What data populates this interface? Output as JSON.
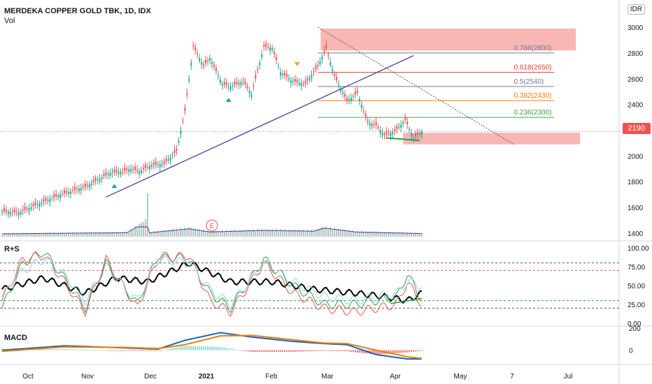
{
  "header": {
    "title": "MERDEKA COPPER GOLD TBK, 1D, IDX",
    "volume_label": "Vol",
    "currency": "IDR",
    "last_price": "2190"
  },
  "panes": {
    "rs_label": "R+S",
    "macd_label": "MACD",
    "earnings_marker": "E"
  },
  "colors": {
    "up": "#26a69a",
    "down": "#ef5350",
    "trendline": "#4a3fa0",
    "zone": "#f7a9a8"
  },
  "chart_data": {
    "type": "candlestick",
    "x_labels": [
      "Oct",
      "Nov",
      "Dec",
      "2021",
      "Feb",
      "Mar",
      "Apr",
      "May",
      "7",
      "Jul"
    ],
    "price_axis": {
      "ticks": [
        1400,
        1600,
        1800,
        2000,
        2200,
        2400,
        2600,
        2800,
        3000
      ],
      "range": [
        1340,
        3060
      ]
    },
    "rs_axis": {
      "ticks": [
        "100.00",
        "75.00",
        "50.00",
        "25.00",
        "0.00"
      ],
      "range": [
        0,
        100
      ],
      "levels": [
        80,
        70,
        30,
        20
      ]
    },
    "macd_axis": {
      "ticks": [
        "200",
        "0"
      ],
      "range": [
        -130,
        220
      ]
    },
    "fib_levels": [
      {
        "label": "0.786(2800)",
        "value": 2800,
        "color": "#787b86"
      },
      {
        "label": "0.618(2650)",
        "value": 2650,
        "color": "#e53935"
      },
      {
        "label": "0.5(2540)",
        "value": 2540,
        "color": "#787b86"
      },
      {
        "label": "0.382(2430)",
        "value": 2430,
        "color": "#f57c00"
      },
      {
        "label": "0.236(2300)",
        "value": 2300,
        "color": "#43a047"
      }
    ],
    "supply_zone": [
      2820,
      2990
    ],
    "demand_zone": [
      2090,
      2180
    ],
    "trendline": {
      "start": 1680,
      "end": 2780
    },
    "descending_line": {
      "start": 3000,
      "end": 2090
    },
    "current_line": 2190,
    "price_waypoints": [
      [
        0,
        1570
      ],
      [
        8,
        1560
      ],
      [
        15,
        1610
      ],
      [
        28,
        1700
      ],
      [
        40,
        1760
      ],
      [
        52,
        1870
      ],
      [
        58,
        1880
      ],
      [
        62,
        1900
      ],
      [
        66,
        1880
      ],
      [
        72,
        1930
      ],
      [
        78,
        1940
      ],
      [
        84,
        2040
      ],
      [
        88,
        2350
      ],
      [
        92,
        2850
      ],
      [
        97,
        2700
      ],
      [
        100,
        2760
      ],
      [
        106,
        2560
      ],
      [
        110,
        2540
      ],
      [
        116,
        2580
      ],
      [
        120,
        2480
      ],
      [
        126,
        2850
      ],
      [
        130,
        2840
      ],
      [
        134,
        2650
      ],
      [
        140,
        2580
      ],
      [
        146,
        2560
      ],
      [
        152,
        2700
      ],
      [
        156,
        2840
      ],
      [
        160,
        2620
      ],
      [
        166,
        2430
      ],
      [
        171,
        2490
      ],
      [
        176,
        2260
      ],
      [
        180,
        2240
      ],
      [
        184,
        2160
      ],
      [
        189,
        2190
      ],
      [
        194,
        2280
      ],
      [
        198,
        2140
      ],
      [
        202,
        2190
      ]
    ],
    "volume_waypoints": [
      [
        0,
        0.18
      ],
      [
        30,
        0.22
      ],
      [
        60,
        0.25
      ],
      [
        70,
        1.0
      ],
      [
        71,
        0.25
      ],
      [
        90,
        0.5
      ],
      [
        100,
        0.3
      ],
      [
        126,
        0.4
      ],
      [
        150,
        0.35
      ],
      [
        155,
        0.55
      ],
      [
        170,
        0.3
      ],
      [
        202,
        0.2
      ]
    ],
    "rs_series": [
      {
        "color": "#000000",
        "waypoints": [
          [
            0,
            45
          ],
          [
            20,
            60
          ],
          [
            40,
            40
          ],
          [
            55,
            60
          ],
          [
            70,
            55
          ],
          [
            90,
            80
          ],
          [
            110,
            55
          ],
          [
            130,
            55
          ],
          [
            150,
            45
          ],
          [
            170,
            40
          ],
          [
            185,
            35
          ],
          [
            195,
            30
          ],
          [
            202,
            40
          ]
        ]
      },
      {
        "color": "#2e9e46",
        "waypoints": [
          [
            0,
            20
          ],
          [
            10,
            80
          ],
          [
            20,
            95
          ],
          [
            30,
            60
          ],
          [
            40,
            20
          ],
          [
            50,
            80
          ],
          [
            65,
            25
          ],
          [
            75,
            90
          ],
          [
            90,
            85
          ],
          [
            100,
            40
          ],
          [
            110,
            20
          ],
          [
            126,
            85
          ],
          [
            140,
            50
          ],
          [
            155,
            25
          ],
          [
            170,
            25
          ],
          [
            180,
            30
          ],
          [
            190,
            35
          ],
          [
            195,
            65
          ],
          [
            202,
            32
          ]
        ]
      },
      {
        "color": "#ef5350",
        "waypoints": [
          [
            0,
            30
          ],
          [
            10,
            85
          ],
          [
            20,
            90
          ],
          [
            30,
            55
          ],
          [
            40,
            15
          ],
          [
            50,
            85
          ],
          [
            65,
            20
          ],
          [
            75,
            85
          ],
          [
            90,
            90
          ],
          [
            100,
            30
          ],
          [
            110,
            15
          ],
          [
            126,
            80
          ],
          [
            140,
            40
          ],
          [
            155,
            20
          ],
          [
            170,
            15
          ],
          [
            180,
            20
          ],
          [
            190,
            25
          ],
          [
            195,
            55
          ],
          [
            202,
            25
          ]
        ]
      },
      {
        "color": "#8fd0e8",
        "waypoints": [
          [
            0,
            35
          ],
          [
            10,
            70
          ],
          [
            20,
            85
          ],
          [
            30,
            65
          ],
          [
            40,
            30
          ],
          [
            50,
            75
          ],
          [
            65,
            30
          ],
          [
            75,
            85
          ],
          [
            90,
            80
          ],
          [
            100,
            45
          ],
          [
            110,
            25
          ],
          [
            126,
            80
          ],
          [
            140,
            55
          ],
          [
            155,
            35
          ],
          [
            170,
            30
          ],
          [
            180,
            35
          ],
          [
            190,
            40
          ],
          [
            195,
            55
          ],
          [
            202,
            50
          ]
        ]
      }
    ],
    "macd_line_waypoints": [
      [
        0,
        0
      ],
      [
        30,
        40
      ],
      [
        60,
        20
      ],
      [
        75,
        10
      ],
      [
        88,
        90
      ],
      [
        105,
        160
      ],
      [
        120,
        120
      ],
      [
        140,
        80
      ],
      [
        155,
        60
      ],
      [
        166,
        50
      ],
      [
        180,
        -40
      ],
      [
        195,
        -80
      ],
      [
        202,
        -80
      ]
    ],
    "signal_line_waypoints": [
      [
        0,
        -10
      ],
      [
        30,
        30
      ],
      [
        60,
        25
      ],
      [
        75,
        15
      ],
      [
        88,
        50
      ],
      [
        105,
        130
      ],
      [
        120,
        135
      ],
      [
        140,
        95
      ],
      [
        155,
        65
      ],
      [
        166,
        60
      ],
      [
        180,
        0
      ],
      [
        195,
        -60
      ],
      [
        202,
        -75
      ]
    ],
    "histogram_waypoints": [
      [
        0,
        10
      ],
      [
        30,
        10
      ],
      [
        60,
        -5
      ],
      [
        75,
        -5
      ],
      [
        88,
        40
      ],
      [
        105,
        30
      ],
      [
        120,
        -15
      ],
      [
        140,
        -15
      ],
      [
        155,
        -5
      ],
      [
        166,
        -10
      ],
      [
        180,
        -40
      ],
      [
        195,
        -20
      ],
      [
        202,
        -5
      ]
    ]
  }
}
